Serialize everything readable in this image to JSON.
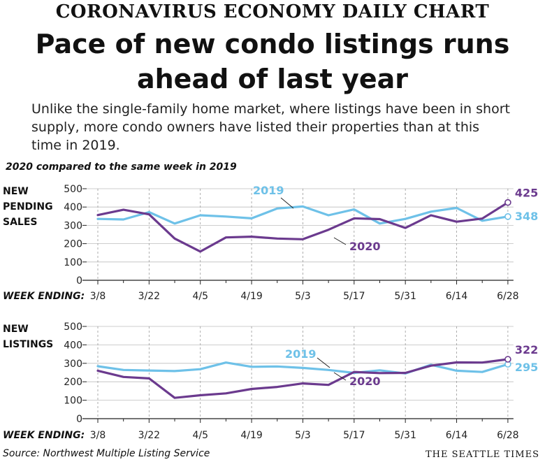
{
  "kicker": "CORONAVIRUS ECONOMY DAILY CHART",
  "headline_line1": "Pace of new condo listings runs",
  "headline_line2": "ahead of last year",
  "dek": "Unlike the single-family home market, where listings have been in short supply, more condo owners have listed their properties than at this time in 2019.",
  "subhead": "2020 compared to the same week in 2019",
  "source": "Source: Northwest Multiple Listing Service",
  "credit": "THE SEATTLE TIMES",
  "colors": {
    "s2020": "#6b3a8e",
    "s2019": "#6ec1e8"
  },
  "chart_data": [
    {
      "type": "line",
      "panel_label": [
        "NEW",
        "PENDING",
        "SALES"
      ],
      "xlabel": "WEEK ENDING:",
      "x_ticks": [
        "3/8",
        "3/22",
        "4/5",
        "4/19",
        "5/3",
        "5/17",
        "5/31",
        "6/14",
        "6/28"
      ],
      "ylim": [
        0,
        500
      ],
      "yticks": [
        0,
        100,
        200,
        300,
        400,
        500
      ],
      "series": [
        {
          "name": "2019",
          "values": [
            335,
            332,
            372,
            310,
            355,
            348,
            338,
            392,
            403,
            355,
            387,
            310,
            335,
            375,
            395,
            325,
            348
          ],
          "end_label": "348"
        },
        {
          "name": "2020",
          "values": [
            356,
            385,
            360,
            228,
            157,
            234,
            238,
            228,
            224,
            276,
            338,
            334,
            286,
            355,
            320,
            337,
            425
          ],
          "end_label": "425"
        }
      ]
    },
    {
      "type": "line",
      "panel_label": [
        "NEW",
        "LISTINGS"
      ],
      "xlabel": "WEEK ENDING:",
      "x_ticks": [
        "3/8",
        "3/22",
        "4/5",
        "4/19",
        "5/3",
        "5/17",
        "5/31",
        "6/14",
        "6/28"
      ],
      "ylim": [
        0,
        500
      ],
      "yticks": [
        0,
        100,
        200,
        300,
        400,
        500
      ],
      "series": [
        {
          "name": "2019",
          "values": [
            284,
            264,
            261,
            258,
            268,
            304,
            281,
            283,
            275,
            264,
            248,
            262,
            245,
            292,
            260,
            253,
            295
          ],
          "end_label": "295"
        },
        {
          "name": "2020",
          "values": [
            260,
            226,
            218,
            113,
            127,
            137,
            161,
            172,
            191,
            183,
            253,
            247,
            248,
            287,
            305,
            304,
            322
          ],
          "end_label": "322"
        }
      ]
    }
  ]
}
